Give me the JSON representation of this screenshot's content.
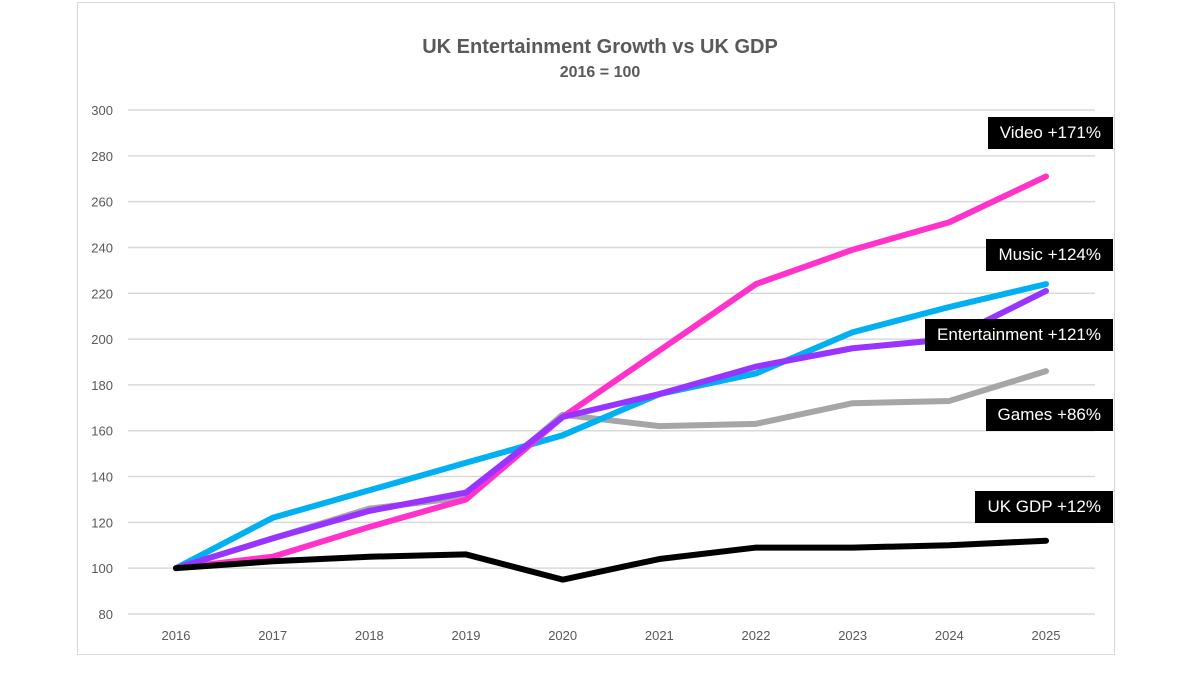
{
  "chart_data": {
    "type": "line",
    "title": "UK Entertainment Growth vs UK GDP",
    "subtitle": "2016 = 100",
    "xlabel": "",
    "ylabel": "",
    "categories": [
      "2016",
      "2017",
      "2018",
      "2019",
      "2020",
      "2021",
      "2022",
      "2023",
      "2024",
      "2025"
    ],
    "ylim": [
      80,
      300
    ],
    "yticks": [
      80,
      100,
      120,
      140,
      160,
      180,
      200,
      220,
      240,
      260,
      280,
      300
    ],
    "grid": true,
    "series": [
      {
        "name": "Games +86%",
        "color": "#a6a6a6",
        "values": [
          100,
          113,
          126,
          131,
          167,
          162,
          163,
          172,
          173,
          186
        ]
      },
      {
        "name": "Music +124%",
        "color": "#00b0f0",
        "values": [
          100,
          122,
          134,
          146,
          158,
          176,
          185,
          203,
          214,
          224
        ]
      },
      {
        "name": "Video +171%",
        "color": "#ff33cc",
        "values": [
          100,
          105,
          118,
          130,
          166,
          195,
          224,
          239,
          251,
          271
        ]
      },
      {
        "name": "Entertainment +121%",
        "color": "#9933ff",
        "values": [
          100,
          113,
          125,
          133,
          166,
          176,
          188,
          196,
          200,
          221
        ]
      },
      {
        "name": "UK GDP +12%",
        "color": "#000000",
        "values": [
          100,
          103,
          105,
          106,
          95,
          104,
          109,
          109,
          110,
          112
        ]
      }
    ]
  }
}
